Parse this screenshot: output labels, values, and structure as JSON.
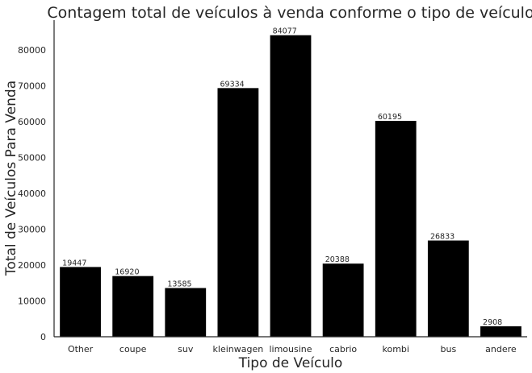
{
  "chart_data": {
    "type": "bar",
    "title": "Contagem total de veículos à venda conforme o tipo de veículo",
    "xlabel": "Tipo de Veículo",
    "ylabel": "Total de Veículos Para Venda",
    "categories": [
      "Other",
      "coupe",
      "suv",
      "kleinwagen",
      "limousine",
      "cabrio",
      "kombi",
      "bus",
      "andere"
    ],
    "values": [
      19447,
      16920,
      13585,
      69334,
      84077,
      20388,
      60195,
      26833,
      2908
    ],
    "data_labels": [
      "19447",
      "16920",
      "13585",
      "69334",
      "84077",
      "20388",
      "60195",
      "26833",
      "2908"
    ],
    "yticks": [
      0,
      10000,
      20000,
      30000,
      40000,
      50000,
      60000,
      70000,
      80000
    ],
    "ylim": [
      0,
      88281
    ],
    "grid": false,
    "bar_color": "#000000"
  }
}
